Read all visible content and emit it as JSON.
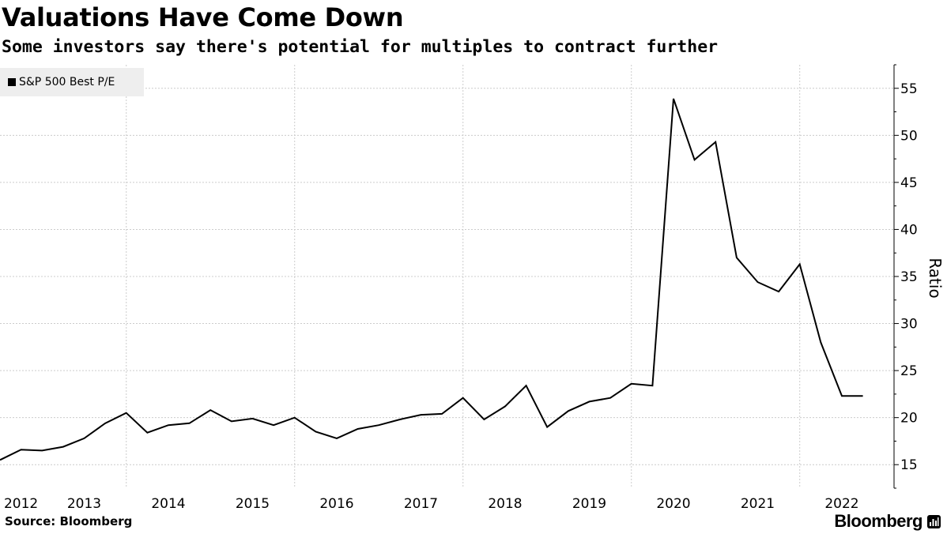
{
  "title": "Valuations Have Come Down",
  "subtitle": "Some investors say there's potential for multiples to contract further",
  "source": "Source: Bloomberg",
  "brand": "Bloomberg",
  "colors": {
    "line": "#000000",
    "grid": "#cccccc",
    "legend_bg": "#eeeeee",
    "text": "#000000"
  },
  "chart_data": {
    "type": "line",
    "title": "Valuations Have Come Down",
    "subtitle": "Some investors say there's potential for multiples to contract further",
    "ylabel": "Ratio",
    "xlabel": "",
    "ylim": [
      12.5,
      57.5
    ],
    "xlim": [
      2012.0,
      2022.62
    ],
    "yticks": [
      15,
      20,
      25,
      30,
      35,
      40,
      45,
      50,
      55
    ],
    "xtick_labels": [
      {
        "label": "2012",
        "x": 2012.25
      },
      {
        "label": "2013",
        "x": 2013.0
      },
      {
        "label": "2014",
        "x": 2014.0
      },
      {
        "label": "2015",
        "x": 2015.0
      },
      {
        "label": "2016",
        "x": 2016.0
      },
      {
        "label": "2017",
        "x": 2017.0
      },
      {
        "label": "2018",
        "x": 2018.0
      },
      {
        "label": "2019",
        "x": 2019.0
      },
      {
        "label": "2020",
        "x": 2020.0
      },
      {
        "label": "2021",
        "x": 2021.0
      },
      {
        "label": "2022",
        "x": 2022.0
      }
    ],
    "vgrid_x": [
      2013.5,
      2015.5,
      2017.5,
      2019.5,
      2021.5
    ],
    "legend": [
      {
        "name": "S&P 500 Best P/E",
        "position": "top-left"
      }
    ],
    "series": [
      {
        "name": "S&P 500 Best P/E",
        "x": [
          2012.0,
          2012.25,
          2012.5,
          2012.75,
          2013.0,
          2013.25,
          2013.5,
          2013.75,
          2014.0,
          2014.25,
          2014.5,
          2014.75,
          2015.0,
          2015.25,
          2015.5,
          2015.75,
          2016.0,
          2016.25,
          2016.5,
          2016.75,
          2017.0,
          2017.25,
          2017.5,
          2017.75,
          2018.0,
          2018.25,
          2018.5,
          2018.75,
          2019.0,
          2019.25,
          2019.5,
          2019.75,
          2020.0,
          2020.25,
          2020.5,
          2020.75,
          2021.0,
          2021.25,
          2021.5,
          2021.75,
          2022.0,
          2022.25
        ],
        "values": [
          15.5,
          16.6,
          16.5,
          16.9,
          17.8,
          19.4,
          20.5,
          18.4,
          19.2,
          19.4,
          20.8,
          19.6,
          19.9,
          19.2,
          20.0,
          18.5,
          17.8,
          18.8,
          19.2,
          19.8,
          20.3,
          20.4,
          22.1,
          19.8,
          21.2,
          23.4,
          19.0,
          20.7,
          21.7,
          22.1,
          23.6,
          23.4,
          53.9,
          47.4,
          49.3,
          37.0,
          34.4,
          33.4,
          36.3,
          28.0,
          22.3,
          22.3
        ]
      }
    ]
  }
}
